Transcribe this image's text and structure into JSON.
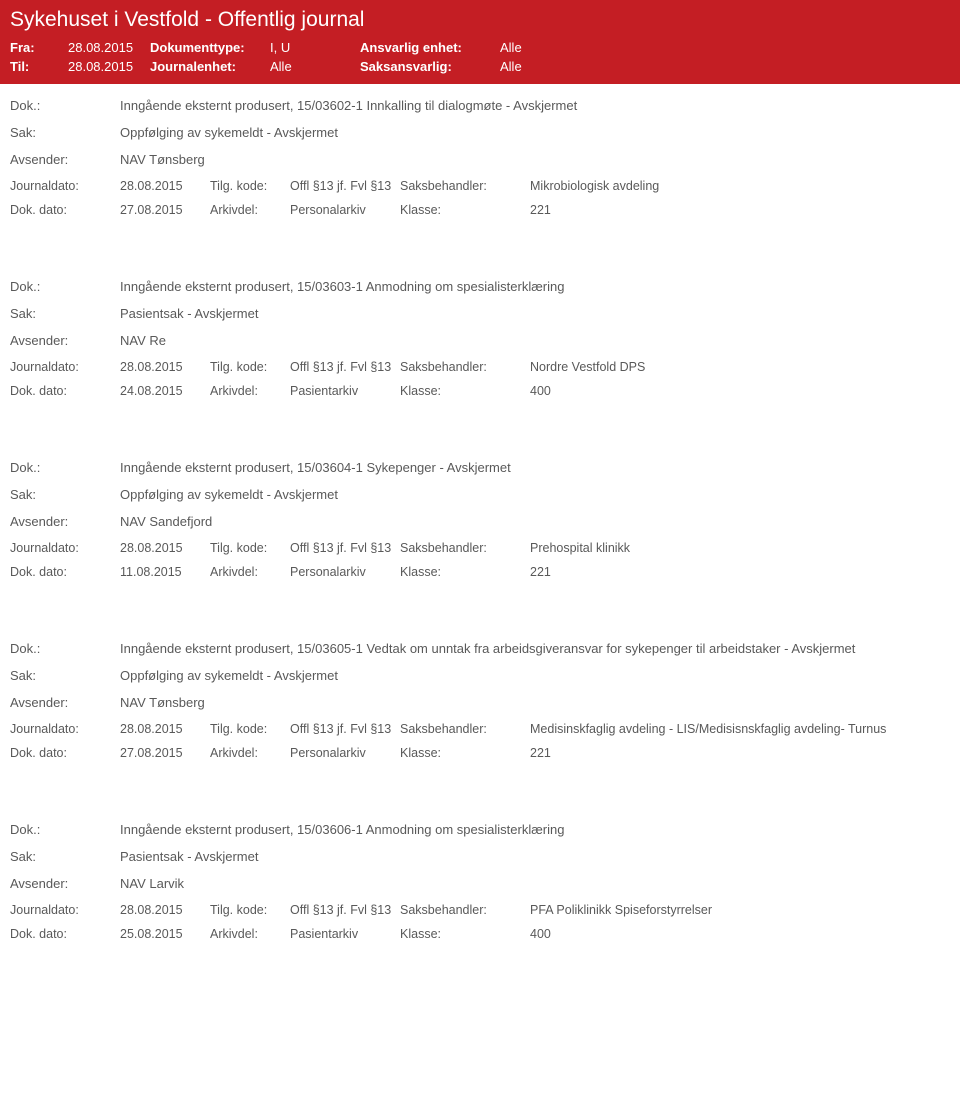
{
  "header": {
    "title": "Sykehuset i Vestfold - Offentlig journal",
    "labels": {
      "fra": "Fra:",
      "til": "Til:",
      "dokumenttype": "Dokumenttype:",
      "journalenhet": "Journalenhet:",
      "ansvarlig_enhet": "Ansvarlig enhet:",
      "saksansvarlig": "Saksansvarlig:"
    },
    "values": {
      "fra": "28.08.2015",
      "til": "28.08.2015",
      "dokumenttype": "I, U",
      "journalenhet": "Alle",
      "ansvarlig_enhet": "Alle",
      "saksansvarlig": "Alle"
    }
  },
  "labels": {
    "dok": "Dok.:",
    "sak": "Sak:",
    "avsender": "Avsender:",
    "journaldato": "Journaldato:",
    "tilg_kode": "Tilg. kode:",
    "saksbehandler": "Saksbehandler:",
    "dok_dato": "Dok. dato:",
    "arkivdel": "Arkivdel:",
    "klasse": "Klasse:"
  },
  "entries": [
    {
      "dok": "Inngående eksternt produsert, 15/03602-1 Innkalling til dialogmøte - Avskjermet",
      "sak": "Oppfølging av sykemeldt - Avskjermet",
      "avsender": "NAV Tønsberg",
      "journaldato": "28.08.2015",
      "tilg_kode": "Offl §13 jf. Fvl §13",
      "saksbehandler": "Mikrobiologisk avdeling",
      "dok_dato": "27.08.2015",
      "arkivdel": "Personalarkiv",
      "klasse": "221"
    },
    {
      "dok": "Inngående eksternt produsert, 15/03603-1 Anmodning om spesialisterklæring",
      "sak": "Pasientsak - Avskjermet",
      "avsender": "NAV Re",
      "journaldato": "28.08.2015",
      "tilg_kode": "Offl §13 jf. Fvl §13",
      "saksbehandler": "Nordre Vestfold DPS",
      "dok_dato": "24.08.2015",
      "arkivdel": "Pasientarkiv",
      "klasse": "400"
    },
    {
      "dok": "Inngående eksternt produsert, 15/03604-1 Sykepenger - Avskjermet",
      "sak": "Oppfølging av sykemeldt - Avskjermet",
      "avsender": "NAV Sandefjord",
      "journaldato": "28.08.2015",
      "tilg_kode": "Offl §13 jf. Fvl §13",
      "saksbehandler": "Prehospital klinikk",
      "dok_dato": "11.08.2015",
      "arkivdel": "Personalarkiv",
      "klasse": "221"
    },
    {
      "dok": "Inngående eksternt produsert, 15/03605-1 Vedtak om unntak fra arbeidsgiveransvar for sykepenger til arbeidstaker - Avskjermet",
      "sak": "Oppfølging av sykemeldt - Avskjermet",
      "avsender": "NAV Tønsberg",
      "journaldato": "28.08.2015",
      "tilg_kode": "Offl §13 jf. Fvl §13",
      "saksbehandler": "Medisinskfaglig avdeling - LIS/Medisisnskfaglig avdeling- Turnus",
      "dok_dato": "27.08.2015",
      "arkivdel": "Personalarkiv",
      "klasse": "221"
    },
    {
      "dok": "Inngående eksternt produsert, 15/03606-1 Anmodning om spesialisterklæring",
      "sak": "Pasientsak - Avskjermet",
      "avsender": "NAV Larvik",
      "journaldato": "28.08.2015",
      "tilg_kode": "Offl §13 jf. Fvl §13",
      "saksbehandler": "PFA Poliklinikk Spiseforstyrrelser",
      "dok_dato": "25.08.2015",
      "arkivdel": "Pasientarkiv",
      "klasse": "400"
    }
  ],
  "style": {
    "header_bg": "#c41e24",
    "header_fg": "#ffffff",
    "body_fg": "#5a5a5a"
  }
}
